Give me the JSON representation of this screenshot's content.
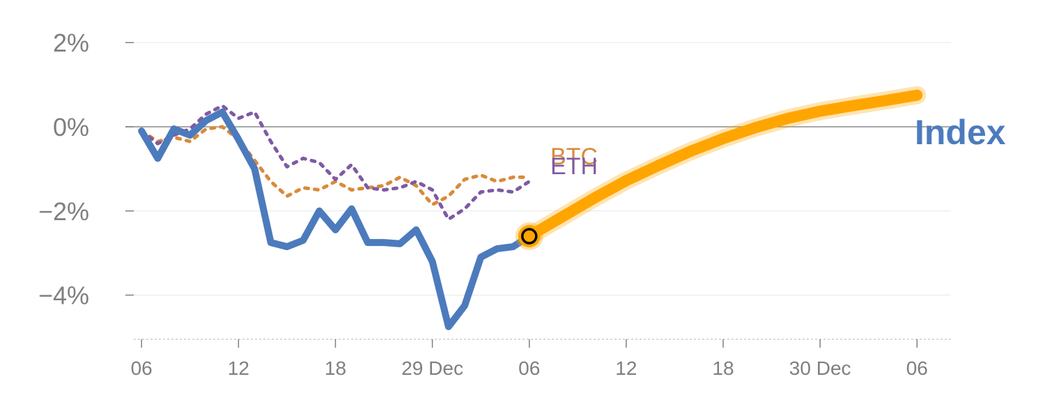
{
  "colors": {
    "index": "#4c7bbd",
    "btc": "#d98a3a",
    "eth": "#7f5aa3",
    "forecast": "#ffa500",
    "grid": "#e6e6e6",
    "zero_line": "#8c8c8c",
    "tick_text": "#7f7f7f"
  },
  "chart_data": {
    "type": "line",
    "x_unit": "hour",
    "x_ticks": [
      {
        "x": 0,
        "label": "06"
      },
      {
        "x": 6,
        "label": "12"
      },
      {
        "x": 12,
        "label": "18"
      },
      {
        "x": 18,
        "label": "29 Dec"
      },
      {
        "x": 24,
        "label": "06"
      },
      {
        "x": 30,
        "label": "12"
      },
      {
        "x": 36,
        "label": "18"
      },
      {
        "x": 42,
        "label": "30 Dec"
      },
      {
        "x": 48,
        "label": "06"
      }
    ],
    "y_ticks": [
      {
        "y": 2,
        "label": "2%"
      },
      {
        "y": 0,
        "label": "0%"
      },
      {
        "y": -2,
        "label": "−2%"
      },
      {
        "y": -4,
        "label": "−4%"
      }
    ],
    "xlim": [
      -1,
      50.1
    ],
    "ylim": [
      -5.05,
      2.35
    ],
    "grid": true,
    "series": [
      {
        "name": "Index",
        "style": "solid",
        "x": [
          0,
          1,
          2,
          3,
          4,
          5,
          6,
          7,
          8,
          9,
          10,
          11,
          12,
          13,
          14,
          15,
          16,
          17,
          18,
          19,
          20,
          21,
          22,
          23,
          24
        ],
        "y": [
          -0.1,
          -0.75,
          -0.05,
          -0.2,
          0.15,
          0.35,
          -0.3,
          -1.0,
          -2.75,
          -2.85,
          -2.7,
          -2.0,
          -2.45,
          -1.95,
          -2.75,
          -2.75,
          -2.78,
          -2.45,
          -3.2,
          -4.75,
          -4.25,
          -3.1,
          -2.9,
          -2.85,
          -2.6
        ]
      },
      {
        "name": "BTC",
        "style": "dotted",
        "x": [
          0,
          1,
          2,
          3,
          4,
          5,
          6,
          7,
          8,
          9,
          10,
          11,
          12,
          13,
          14,
          15,
          16,
          17,
          18,
          19,
          20,
          21,
          22,
          23,
          24
        ],
        "y": [
          -0.1,
          -0.35,
          -0.25,
          -0.35,
          -0.05,
          0.0,
          -0.3,
          -0.8,
          -1.3,
          -1.65,
          -1.45,
          -1.5,
          -1.3,
          -1.5,
          -1.45,
          -1.4,
          -1.2,
          -1.4,
          -1.85,
          -1.65,
          -1.25,
          -1.15,
          -1.3,
          -1.2,
          -1.2
        ]
      },
      {
        "name": "ETH",
        "style": "dotted",
        "x": [
          0,
          1,
          2,
          3,
          4,
          5,
          6,
          7,
          8,
          9,
          10,
          11,
          12,
          13,
          14,
          15,
          16,
          17,
          18,
          19,
          20,
          21,
          22,
          23,
          24
        ],
        "y": [
          -0.1,
          -0.4,
          -0.2,
          -0.05,
          0.3,
          0.5,
          0.2,
          0.35,
          -0.35,
          -0.95,
          -0.75,
          -0.85,
          -1.25,
          -0.9,
          -1.45,
          -1.5,
          -1.45,
          -1.3,
          -1.5,
          -2.2,
          -1.95,
          -1.55,
          -1.5,
          -1.55,
          -1.3
        ]
      },
      {
        "name": "",
        "role": "forecast",
        "style": "thick",
        "x": [
          24,
          26,
          28,
          30,
          32,
          34,
          36,
          38,
          40,
          42,
          44,
          46,
          48
        ],
        "y": [
          -2.6,
          -2.15,
          -1.7,
          -1.28,
          -0.92,
          -0.58,
          -0.28,
          -0.02,
          0.2,
          0.37,
          0.5,
          0.62,
          0.75
        ]
      }
    ],
    "marker": {
      "x": 24,
      "y": -2.6
    },
    "series_labels": [
      {
        "text": "BTC",
        "series": "BTC"
      },
      {
        "text": "ETH",
        "series": "ETH"
      },
      {
        "text": "Index",
        "series": "Index"
      }
    ]
  }
}
